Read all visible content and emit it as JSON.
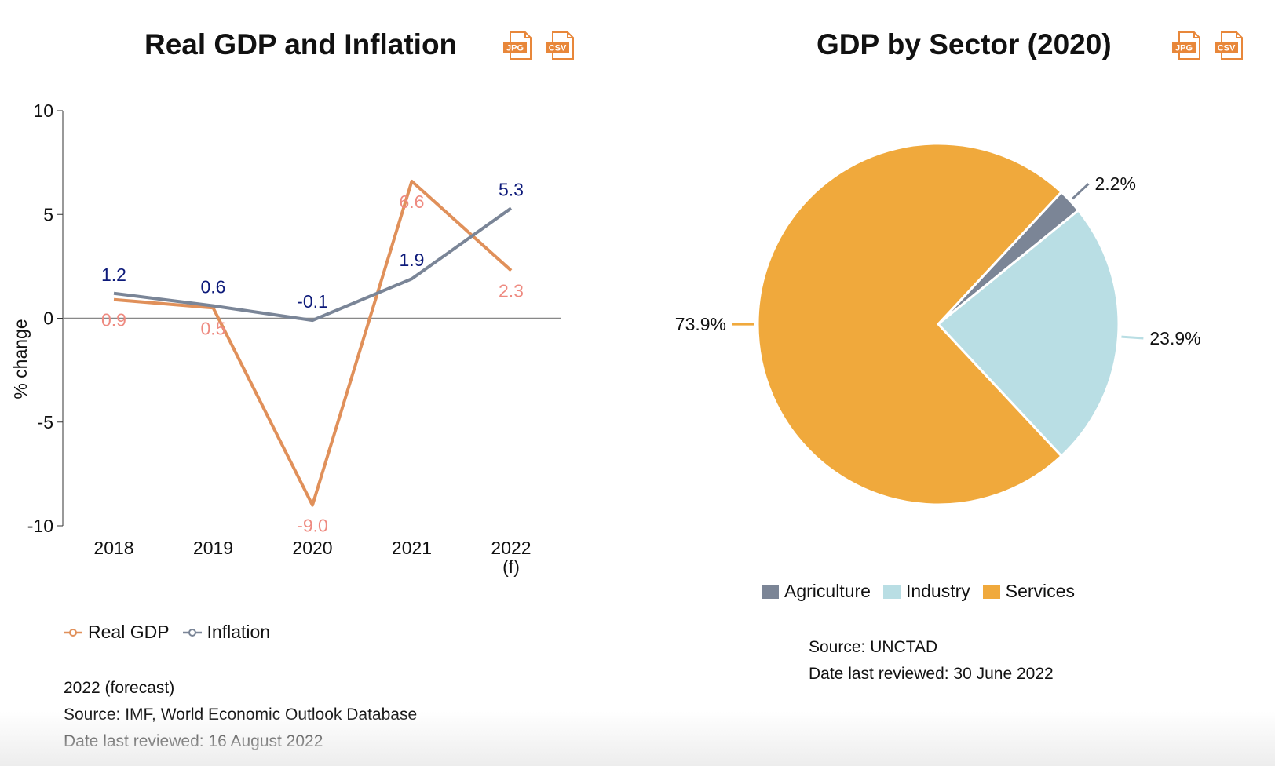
{
  "icons": {
    "jpg_label": "JPG",
    "csv_label": "CSV",
    "accent": "#e8873a"
  },
  "line_chart": {
    "notes": [
      "2022 (forecast)",
      "Source: IMF, World Economic Outlook Database",
      "Date last reviewed: 16 August 2022"
    ]
  },
  "pie_chart": {
    "notes": [
      "Source: UNCTAD",
      "Date last reviewed: 30 June 2022"
    ]
  },
  "chart_data": [
    {
      "type": "line",
      "title": "Real GDP and Inflation",
      "xlabel": "",
      "ylabel": "% change",
      "ylim": [
        -10,
        10
      ],
      "yticks": [
        10,
        5,
        0,
        -5,
        -10
      ],
      "yticks_labels": [
        "10",
        "5",
        "0",
        "-5",
        "-10"
      ],
      "categories": [
        "2018",
        "2019",
        "2020",
        "2021",
        "2022"
      ],
      "category_sublabels": [
        "",
        "",
        "",
        "",
        "(f)"
      ],
      "legend_position": "bottom-left",
      "series": [
        {
          "name": "Real GDP",
          "color": "#e0905a",
          "label_color": "#ee8a80",
          "values": [
            0.9,
            0.5,
            -9.0,
            6.6,
            2.3
          ],
          "labels": [
            "0.9",
            "0.5",
            "-9.0",
            "6.6",
            "2.3"
          ]
        },
        {
          "name": "Inflation",
          "color": "#7a8597",
          "label_color": "#0d1a7a",
          "values": [
            1.2,
            0.6,
            -0.1,
            1.9,
            5.3
          ],
          "labels": [
            "1.2",
            "0.6",
            "-0.1",
            "1.9",
            "5.3"
          ]
        }
      ]
    },
    {
      "type": "pie",
      "title": "GDP by Sector (2020)",
      "legend_position": "bottom",
      "slices": [
        {
          "name": "Agriculture",
          "value": 2.2,
          "label": "2.2%",
          "color": "#7b8596"
        },
        {
          "name": "Industry",
          "value": 23.9,
          "label": "23.9%",
          "color": "#b9dee4"
        },
        {
          "name": "Services",
          "value": 73.9,
          "label": "73.9%",
          "color": "#f0a93c"
        }
      ]
    }
  ]
}
